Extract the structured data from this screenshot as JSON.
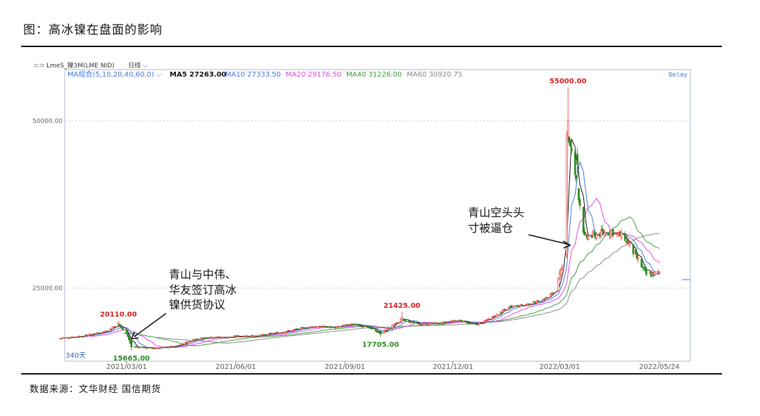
{
  "figure_title": "图：高冰镍在盘面的影响",
  "source_text": "数据来源：文华财经 国信期货",
  "header": {
    "symbol": "LmeS_镍3M(LME NID)",
    "period": "日线",
    "ma_group": "MA组合(5,10,20,40,60,0)",
    "ma5": "MA5 27263.00",
    "ma10": "MA10 27333.50",
    "ma20": "MA20 29176.50",
    "ma40": "MA40 31226.00",
    "ma60": "MA60 30920.75",
    "delay": "Delay",
    "days_label": "340天"
  },
  "colors": {
    "up": "#e8342f",
    "down": "#2a8a1f",
    "ma5": "#111111",
    "ma10": "#3f75d8",
    "ma20": "#dd44dd",
    "ma40": "#3a9a3a",
    "ma60": "#888888",
    "price_label_high": "#d42020",
    "price_label_low": "#2a8a1f"
  },
  "annotations": [
    {
      "text_lines": [
        "青山与中伟、",
        "华友签订高冰",
        "镍供货协议"
      ]
    },
    {
      "text_lines": [
        "青山空头头",
        "寸被逼仓"
      ]
    }
  ],
  "chart_data": {
    "type": "candlestick",
    "y_ticks": [
      "50000.00",
      "25000.00"
    ],
    "x_ticks": [
      "2021/03/01",
      "2021/06/01",
      "2021/09/01",
      "2021/12/01",
      "2022/03/01",
      "2022/05/24"
    ],
    "ylim": [
      13000,
      62000
    ],
    "price_labels": [
      {
        "text": "20110.00",
        "date": "2021-02-22",
        "value": 20110,
        "kind": "high"
      },
      {
        "text": "15665.00",
        "date": "2021-03-05",
        "value": 15665,
        "kind": "low"
      },
      {
        "text": "21425.00",
        "date": "2021-10-19",
        "value": 21425,
        "kind": "high"
      },
      {
        "text": "17705.00",
        "date": "2021-10-01",
        "value": 17705,
        "kind": "low"
      },
      {
        "text": "55000.00",
        "date": "2022-03-08",
        "value": 55000,
        "kind": "high"
      }
    ],
    "price_path": [
      [
        "2021-01-04",
        17500
      ],
      [
        "2021-01-25",
        17900
      ],
      [
        "2021-02-12",
        18600
      ],
      [
        "2021-02-22",
        19600
      ],
      [
        "2021-03-01",
        18200
      ],
      [
        "2021-03-05",
        16300
      ],
      [
        "2021-03-22",
        16000
      ],
      [
        "2021-04-12",
        16300
      ],
      [
        "2021-04-26",
        17300
      ],
      [
        "2021-05-10",
        17700
      ],
      [
        "2021-05-24",
        17600
      ],
      [
        "2021-06-01",
        17800
      ],
      [
        "2021-06-21",
        17900
      ],
      [
        "2021-07-12",
        18500
      ],
      [
        "2021-07-26",
        19000
      ],
      [
        "2021-08-09",
        19300
      ],
      [
        "2021-08-23",
        19100
      ],
      [
        "2021-09-06",
        19600
      ],
      [
        "2021-09-20",
        19200
      ],
      [
        "2021-10-01",
        18200
      ],
      [
        "2021-10-11",
        19400
      ],
      [
        "2021-10-19",
        20400
      ],
      [
        "2021-11-01",
        19600
      ],
      [
        "2021-11-22",
        19800
      ],
      [
        "2021-12-06",
        20200
      ],
      [
        "2021-12-20",
        19500
      ],
      [
        "2022-01-04",
        20700
      ],
      [
        "2022-01-18",
        22300
      ],
      [
        "2022-02-01",
        22500
      ],
      [
        "2022-02-15",
        23300
      ],
      [
        "2022-02-25",
        24500
      ],
      [
        "2022-03-04",
        28500
      ],
      [
        "2022-03-08",
        48000
      ],
      [
        "2022-03-16",
        40000
      ],
      [
        "2022-03-22",
        32500
      ],
      [
        "2022-04-01",
        33000
      ],
      [
        "2022-04-14",
        33500
      ],
      [
        "2022-04-25",
        32500
      ],
      [
        "2022-05-05",
        29500
      ],
      [
        "2022-05-13",
        27000
      ],
      [
        "2022-05-24",
        27200
      ]
    ]
  }
}
